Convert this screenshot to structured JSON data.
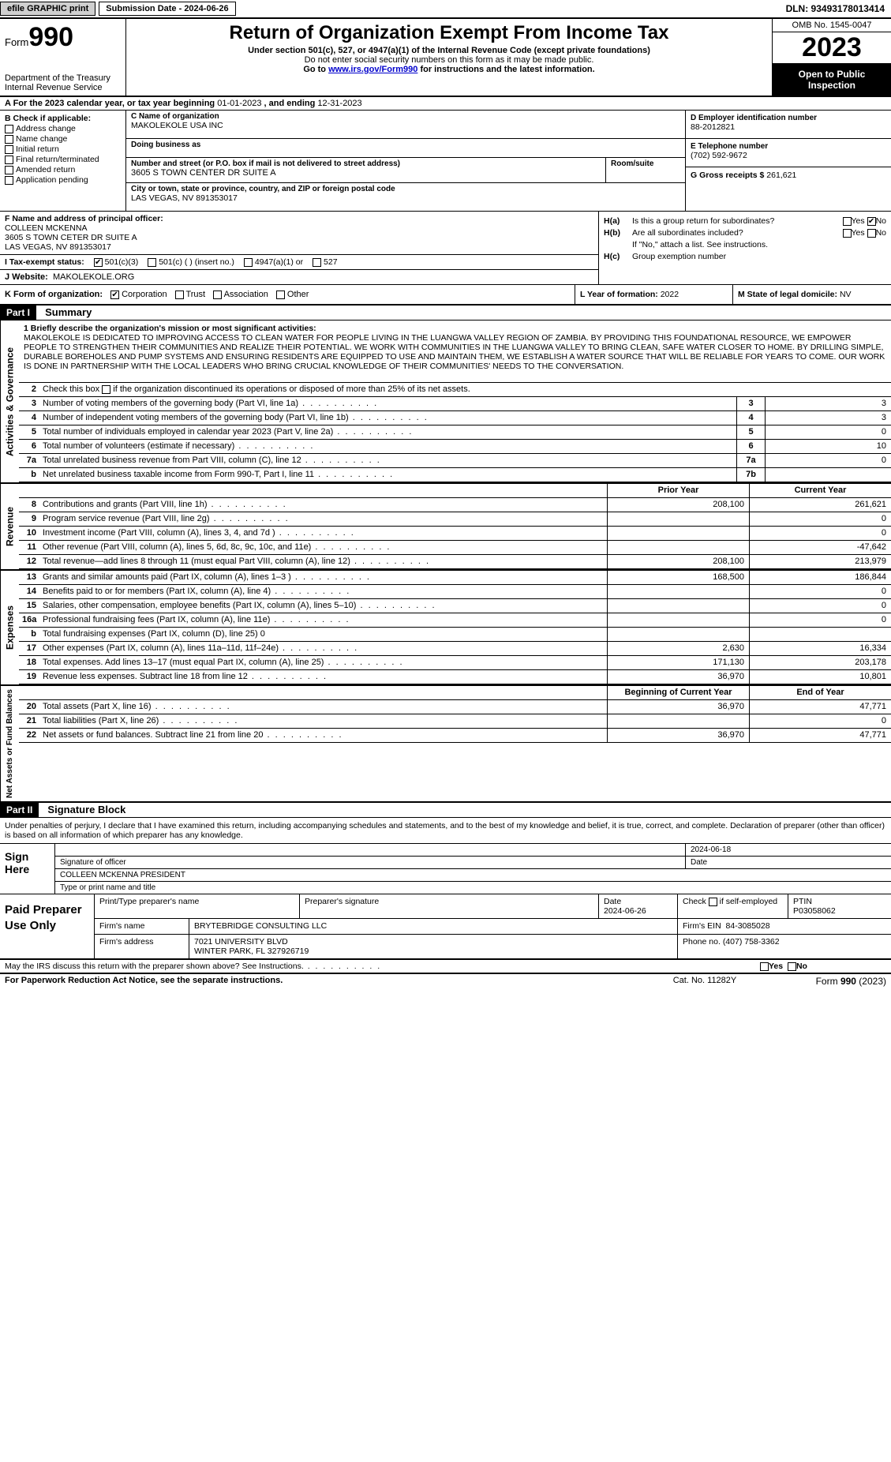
{
  "topbar": {
    "efile": "efile GRAPHIC print",
    "subdate": "Submission Date - 2024-06-26",
    "dln": "DLN: 93493178013414"
  },
  "header": {
    "form": "Form",
    "formnum": "990",
    "dept": "Department of the Treasury Internal Revenue Service",
    "title": "Return of Organization Exempt From Income Tax",
    "sub1": "Under section 501(c), 527, or 4947(a)(1) of the Internal Revenue Code (except private foundations)",
    "sub2": "Do not enter social security numbers on this form as it may be made public.",
    "sub3a": "Go to ",
    "sub3link": "www.irs.gov/Form990",
    "sub3b": " for instructions and the latest information.",
    "omb": "OMB No. 1545-0047",
    "year": "2023",
    "inspect": "Open to Public Inspection"
  },
  "lineA": {
    "pre": "A For the 2023 calendar year, or tax year beginning ",
    "begin": "01-01-2023",
    "mid": ", and ending ",
    "end": "12-31-2023"
  },
  "colB": {
    "hdr": "B Check if applicable:",
    "items": [
      "Address change",
      "Name change",
      "Initial return",
      "Final return/terminated",
      "Amended return",
      "Application pending"
    ]
  },
  "colC": {
    "name_lbl": "C Name of organization",
    "name": "MAKOLEKOLE USA INC",
    "dba_lbl": "Doing business as",
    "addr_lbl": "Number and street (or P.O. box if mail is not delivered to street address)",
    "addr": "3605 S TOWN CENTER DR SUITE A",
    "room_lbl": "Room/suite",
    "city_lbl": "City or town, state or province, country, and ZIP or foreign postal code",
    "city": "LAS VEGAS, NV  891353017"
  },
  "colD": {
    "ein_lbl": "D Employer identification number",
    "ein": "88-2012821",
    "tel_lbl": "E Telephone number",
    "tel": "(702) 592-9672",
    "gross_lbl": "G Gross receipts $ ",
    "gross": "261,621"
  },
  "sectF": {
    "lbl": "F Name and address of principal officer:",
    "name": "COLLEEN MCKENNA",
    "addr1": "3605 S TOWN CETER DR SUITE A",
    "addr2": "LAS VEGAS, NV  891353017"
  },
  "sectI": {
    "lbl": "I   Tax-exempt status:",
    "opt1": "501(c)(3)",
    "opt2": "501(c) (  ) (insert no.)",
    "opt3": "4947(a)(1) or",
    "opt4": "527"
  },
  "sectJ": {
    "lbl": "J   Website:",
    "val": "MAKOLEKOLE.ORG"
  },
  "sectH": {
    "ha_lbl": "H(a)",
    "ha_txt": "Is this a group return for subordinates?",
    "hb_lbl": "H(b)",
    "hb_txt": "Are all subordinates included?",
    "hb_note": "If \"No,\" attach a list. See instructions.",
    "hc_lbl": "H(c)",
    "hc_txt": "Group exemption number",
    "yes": "Yes",
    "no": "No"
  },
  "sectK": {
    "lbl": "K Form of organization:",
    "opts": [
      "Corporation",
      "Trust",
      "Association",
      "Other"
    ]
  },
  "sectL": {
    "lbl": "L Year of formation: ",
    "val": "2022"
  },
  "sectM": {
    "lbl": "M State of legal domicile: ",
    "val": "NV"
  },
  "part1": {
    "hdr": "Part I",
    "title": "Summary",
    "mission_lbl": "1  Briefly describe the organization's mission or most significant activities:",
    "mission": "MAKOLEKOLE IS DEDICATED TO IMPROVING ACCESS TO CLEAN WATER FOR PEOPLE LIVING IN THE LUANGWA VALLEY REGION OF ZAMBIA. BY PROVIDING THIS FOUNDATIONAL RESOURCE, WE EMPOWER PEOPLE TO STRENGTHEN THEIR COMMUNITIES AND REALIZE THEIR POTENTIAL. WE WORK WITH COMMUNITIES IN THE LUANGWA VALLEY TO BRING CLEAN, SAFE WATER CLOSER TO HOME. BY DRILLING SIMPLE, DURABLE BOREHOLES AND PUMP SYSTEMS AND ENSURING RESIDENTS ARE EQUIPPED TO USE AND MAINTAIN THEM, WE ESTABLISH A WATER SOURCE THAT WILL BE RELIABLE FOR YEARS TO COME. OUR WORK IS DONE IN PARTNERSHIP WITH THE LOCAL LEADERS WHO BRING CRUCIAL KNOWLEDGE OF THEIR COMMUNITIES' NEEDS TO THE CONVERSATION.",
    "line2": "Check this box      if the organization discontinued its operations or disposed of more than 25% of its net assets.",
    "gov": {
      "label": "Activities & Governance",
      "rows": [
        {
          "n": "3",
          "t": "Number of voting members of the governing body (Part VI, line 1a)",
          "box": "3",
          "v": "3"
        },
        {
          "n": "4",
          "t": "Number of independent voting members of the governing body (Part VI, line 1b)",
          "box": "4",
          "v": "3"
        },
        {
          "n": "5",
          "t": "Total number of individuals employed in calendar year 2023 (Part V, line 2a)",
          "box": "5",
          "v": "0"
        },
        {
          "n": "6",
          "t": "Total number of volunteers (estimate if necessary)",
          "box": "6",
          "v": "10"
        },
        {
          "n": "7a",
          "t": "Total unrelated business revenue from Part VIII, column (C), line 12",
          "box": "7a",
          "v": "0"
        },
        {
          "n": "b",
          "t": "Net unrelated business taxable income from Form 990-T, Part I, line 11",
          "box": "7b",
          "v": ""
        }
      ]
    },
    "rev": {
      "label": "Revenue",
      "hdr_prior": "Prior Year",
      "hdr_cur": "Current Year",
      "rows": [
        {
          "n": "8",
          "t": "Contributions and grants (Part VIII, line 1h)",
          "p": "208,100",
          "c": "261,621"
        },
        {
          "n": "9",
          "t": "Program service revenue (Part VIII, line 2g)",
          "p": "",
          "c": "0"
        },
        {
          "n": "10",
          "t": "Investment income (Part VIII, column (A), lines 3, 4, and 7d )",
          "p": "",
          "c": "0"
        },
        {
          "n": "11",
          "t": "Other revenue (Part VIII, column (A), lines 5, 6d, 8c, 9c, 10c, and 11e)",
          "p": "",
          "c": "-47,642"
        },
        {
          "n": "12",
          "t": "Total revenue—add lines 8 through 11 (must equal Part VIII, column (A), line 12)",
          "p": "208,100",
          "c": "213,979"
        }
      ]
    },
    "exp": {
      "label": "Expenses",
      "rows": [
        {
          "n": "13",
          "t": "Grants and similar amounts paid (Part IX, column (A), lines 1–3 )",
          "p": "168,500",
          "c": "186,844"
        },
        {
          "n": "14",
          "t": "Benefits paid to or for members (Part IX, column (A), line 4)",
          "p": "",
          "c": "0"
        },
        {
          "n": "15",
          "t": "Salaries, other compensation, employee benefits (Part IX, column (A), lines 5–10)",
          "p": "",
          "c": "0"
        },
        {
          "n": "16a",
          "t": "Professional fundraising fees (Part IX, column (A), line 11e)",
          "p": "",
          "c": "0"
        },
        {
          "n": "b",
          "t": "Total fundraising expenses (Part IX, column (D), line 25) 0",
          "p": "shaded",
          "c": "shaded"
        },
        {
          "n": "17",
          "t": "Other expenses (Part IX, column (A), lines 11a–11d, 11f–24e)",
          "p": "2,630",
          "c": "16,334"
        },
        {
          "n": "18",
          "t": "Total expenses. Add lines 13–17 (must equal Part IX, column (A), line 25)",
          "p": "171,130",
          "c": "203,178"
        },
        {
          "n": "19",
          "t": "Revenue less expenses. Subtract line 18 from line 12",
          "p": "36,970",
          "c": "10,801"
        }
      ]
    },
    "net": {
      "label": "Net Assets or Fund Balances",
      "hdr_prior": "Beginning of Current Year",
      "hdr_cur": "End of Year",
      "rows": [
        {
          "n": "20",
          "t": "Total assets (Part X, line 16)",
          "p": "36,970",
          "c": "47,771"
        },
        {
          "n": "21",
          "t": "Total liabilities (Part X, line 26)",
          "p": "",
          "c": "0"
        },
        {
          "n": "22",
          "t": "Net assets or fund balances. Subtract line 21 from line 20",
          "p": "36,970",
          "c": "47,771"
        }
      ]
    }
  },
  "part2": {
    "hdr": "Part II",
    "title": "Signature Block",
    "penalty": "Under penalties of perjury, I declare that I have examined this return, including accompanying schedules and statements, and to the best of my knowledge and belief, it is true, correct, and complete. Declaration of preparer (other than officer) is based on all information of which preparer has any knowledge.",
    "sign_here": "Sign Here",
    "sig_officer_lbl": "Signature of officer",
    "sig_date": "2024-06-18",
    "sig_date_lbl": "Date",
    "officer_name": "COLLEEN MCKENNA  PRESIDENT",
    "type_name_lbl": "Type or print name and title",
    "paid_hdr": "Paid Preparer Use Only",
    "prep_name_lbl": "Print/Type preparer's name",
    "prep_sig_lbl": "Preparer's signature",
    "prep_date_lbl": "Date",
    "prep_date": "2024-06-26",
    "prep_check_lbl": "Check         if self-employed",
    "ptin_lbl": "PTIN",
    "ptin": "P03058062",
    "firm_name_lbl": "Firm's name",
    "firm_name": "BRYTEBRIDGE CONSULTING LLC",
    "firm_ein_lbl": "Firm's EIN",
    "firm_ein": "84-3085028",
    "firm_addr_lbl": "Firm's address",
    "firm_addr1": "7021 UNIVERSITY BLVD",
    "firm_addr2": "WINTER PARK, FL  327926719",
    "phone_lbl": "Phone no.",
    "phone": "(407) 758-3362",
    "discuss": "May the IRS discuss this return with the preparer shown above? See Instructions.",
    "yes": "Yes",
    "no": "No"
  },
  "footer": {
    "paperwork": "For Paperwork Reduction Act Notice, see the separate instructions.",
    "cat": "Cat. No. 11282Y",
    "form": "Form 990 (2023)"
  }
}
